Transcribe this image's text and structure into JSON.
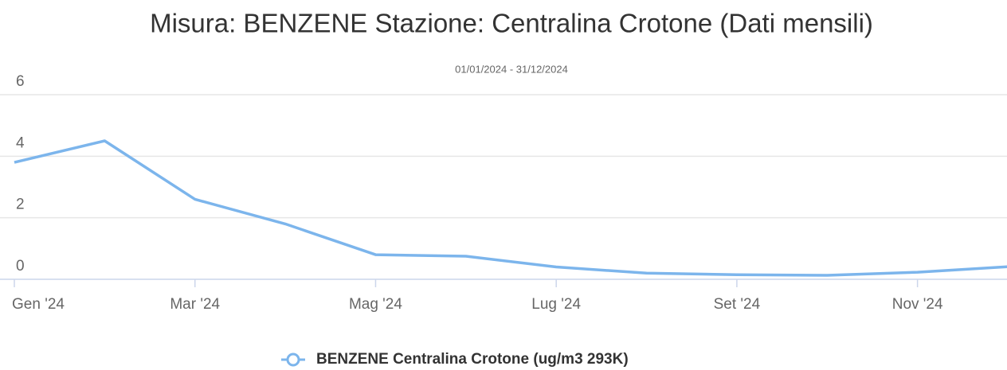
{
  "chart_data": {
    "type": "line",
    "title": "Misura: BENZENE Stazione: Centralina Crotone (Dati mensili)",
    "subtitle": "01/01/2024 - 31/12/2024",
    "categories": [
      "Gen '24",
      null,
      "Mar '24",
      null,
      "Mag '24",
      null,
      "Lug '24",
      null,
      "Set '24",
      null,
      "Nov '24",
      null
    ],
    "series": [
      {
        "name": "BENZENE Centralina Crotone (ug/m3 293K)",
        "color": "#7cb5ec",
        "values": [
          3.8,
          4.5,
          2.6,
          1.8,
          0.8,
          0.75,
          0.4,
          0.2,
          0.15,
          0.13,
          0.23,
          0.41
        ]
      }
    ],
    "ylim": [
      0,
      6
    ],
    "yticks": [
      0,
      2,
      4,
      6
    ],
    "grid": true,
    "legend": "bottom"
  }
}
